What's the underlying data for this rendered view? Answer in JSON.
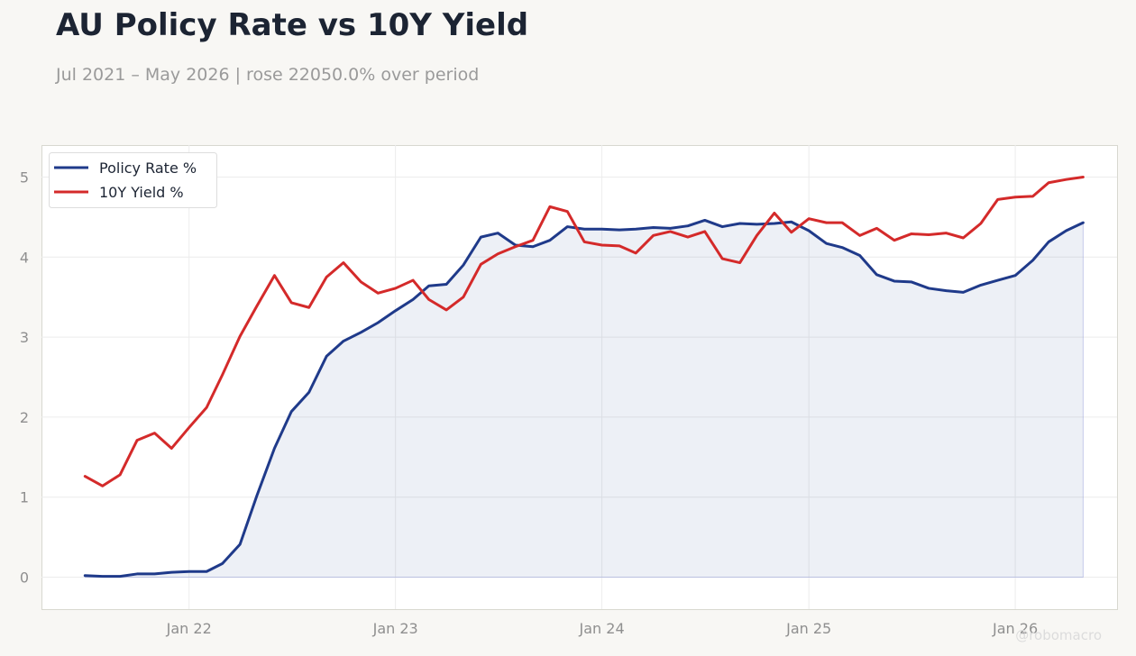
{
  "title": "AU Policy Rate vs 10Y Yield",
  "subtitle": "Jul 2021 – May 2026 | rose 22050.0% over period",
  "watermark": "@robomacro",
  "chart_data": {
    "type": "line",
    "title": "AU Policy Rate vs 10Y Yield",
    "xlabel": "",
    "ylabel": "",
    "xlim": [
      "2021-04-15",
      "2026-06-30"
    ],
    "ylim": [
      -0.4,
      5.4
    ],
    "x_ticks": [
      "2022-01-01",
      "2023-01-01",
      "2024-01-01",
      "2025-01-01",
      "2026-01-01"
    ],
    "x_tick_labels": [
      "Jan 22",
      "Jan 23",
      "Jan 24",
      "Jan 25",
      "Jan 26"
    ],
    "y_ticks": [
      0,
      1,
      2,
      3,
      4,
      5
    ],
    "y_tick_labels": [
      "0",
      "1",
      "2",
      "3",
      "4",
      "5"
    ],
    "grid": true,
    "legend": "top-left",
    "x": [
      "2021-07-01",
      "2021-08-01",
      "2021-09-01",
      "2021-10-01",
      "2021-11-01",
      "2021-12-01",
      "2022-01-01",
      "2022-02-01",
      "2022-03-01",
      "2022-04-01",
      "2022-05-01",
      "2022-06-01",
      "2022-07-01",
      "2022-08-01",
      "2022-09-01",
      "2022-10-01",
      "2022-11-01",
      "2022-12-01",
      "2023-01-01",
      "2023-02-01",
      "2023-03-01",
      "2023-04-01",
      "2023-05-01",
      "2023-06-01",
      "2023-07-01",
      "2023-08-01",
      "2023-09-01",
      "2023-10-01",
      "2023-11-01",
      "2023-12-01",
      "2024-01-01",
      "2024-02-01",
      "2024-03-01",
      "2024-04-01",
      "2024-05-01",
      "2024-06-01",
      "2024-07-01",
      "2024-08-01",
      "2024-09-01",
      "2024-10-01",
      "2024-11-01",
      "2024-12-01",
      "2025-01-01",
      "2025-02-01",
      "2025-03-01",
      "2025-04-01",
      "2025-05-01",
      "2025-06-01",
      "2025-07-01",
      "2025-08-01",
      "2025-09-01",
      "2025-10-01",
      "2025-11-01",
      "2025-12-01",
      "2026-01-01",
      "2026-02-01",
      "2026-03-01",
      "2026-04-01",
      "2026-05-01"
    ],
    "series": [
      {
        "name": "Policy Rate %",
        "color": "#1f3a8a",
        "fill": true,
        "values": [
          0.02,
          0.01,
          0.01,
          0.04,
          0.04,
          0.06,
          0.07,
          0.07,
          0.17,
          0.41,
          1.02,
          1.61,
          2.07,
          2.31,
          2.76,
          2.95,
          3.06,
          3.18,
          3.33,
          3.47,
          3.64,
          3.66,
          3.9,
          4.25,
          4.3,
          4.15,
          4.13,
          4.21,
          4.38,
          4.35,
          4.35,
          4.34,
          4.35,
          4.37,
          4.36,
          4.39,
          4.46,
          4.38,
          4.42,
          4.41,
          4.42,
          4.44,
          4.33,
          4.17,
          4.12,
          4.02,
          3.78,
          3.7,
          3.69,
          3.61,
          3.58,
          3.56,
          3.65,
          3.71,
          3.77,
          3.96,
          4.19,
          4.33,
          4.43
        ]
      },
      {
        "name": "10Y Yield %",
        "color": "#d42a2a",
        "fill": false,
        "values": [
          1.26,
          1.14,
          1.28,
          1.71,
          1.8,
          1.61,
          1.87,
          2.12,
          2.53,
          3.01,
          3.39,
          3.77,
          3.43,
          3.37,
          3.75,
          3.93,
          3.69,
          3.55,
          3.61,
          3.71,
          3.47,
          3.34,
          3.5,
          3.91,
          4.04,
          4.13,
          4.21,
          4.63,
          4.57,
          4.19,
          4.15,
          4.14,
          4.05,
          4.27,
          4.32,
          4.25,
          4.32,
          3.98,
          3.93,
          4.27,
          4.55,
          4.31,
          4.48,
          4.43,
          4.43,
          4.27,
          4.36,
          4.21,
          4.29,
          4.28,
          4.3,
          4.24,
          4.42,
          4.72,
          4.75,
          4.76,
          4.93,
          4.97,
          5.0
        ]
      }
    ]
  }
}
